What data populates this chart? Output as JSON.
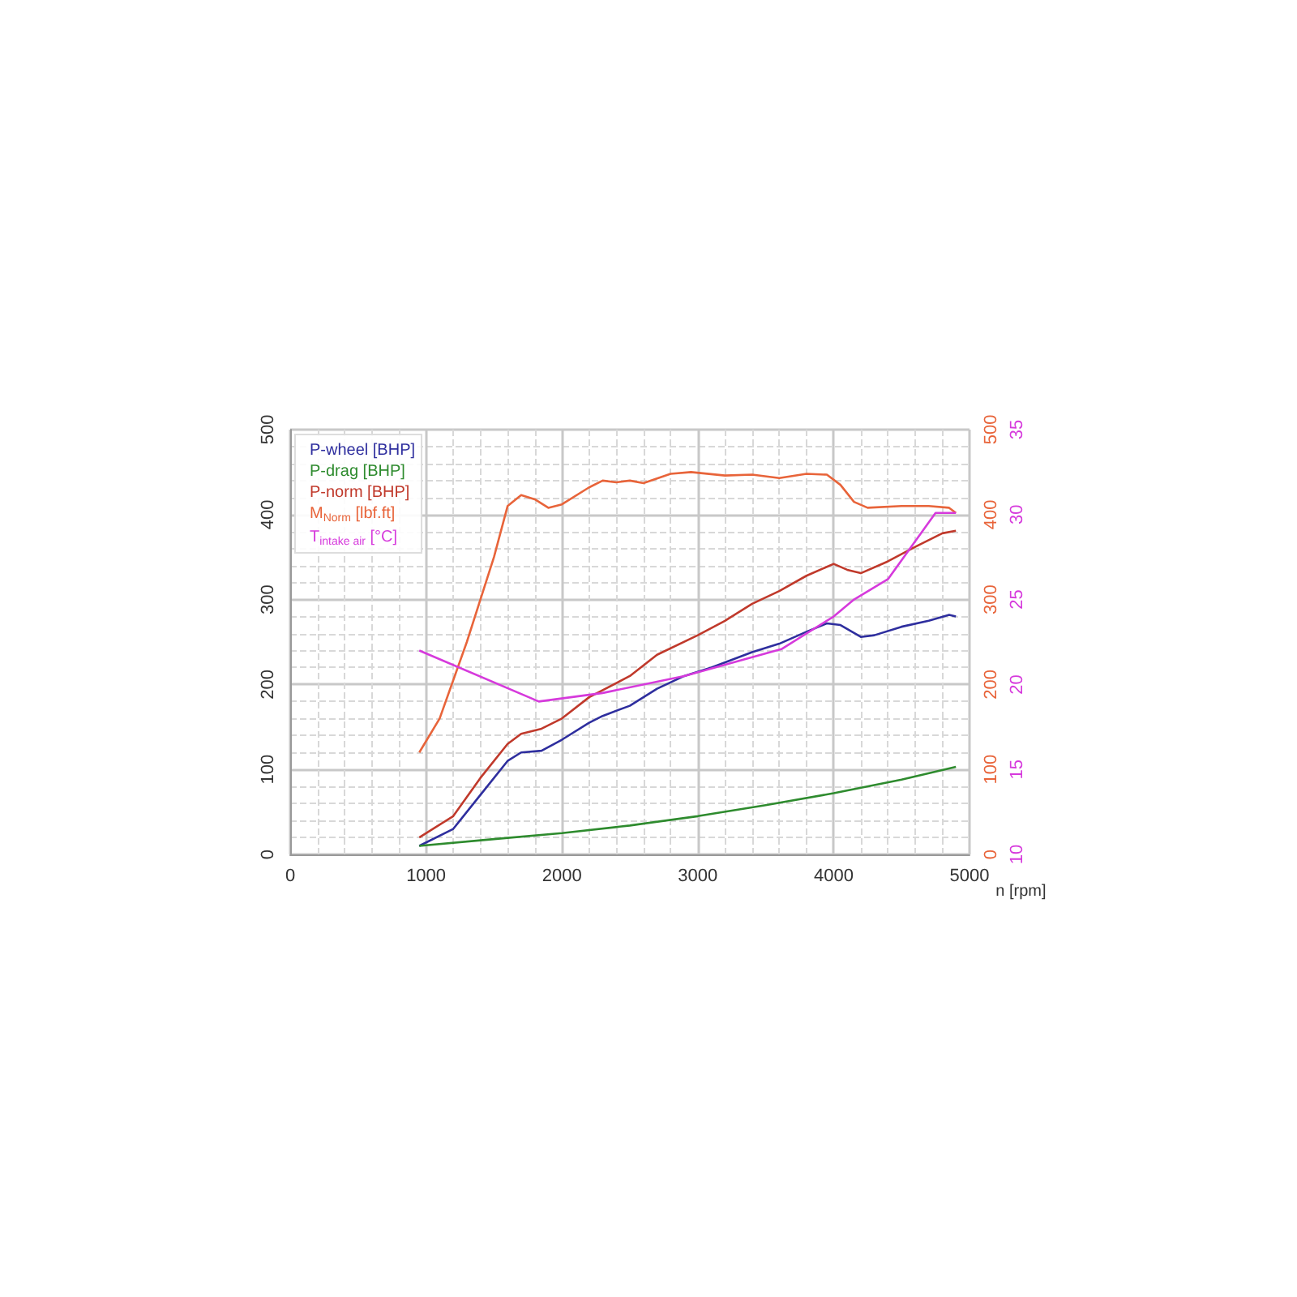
{
  "chart_data": {
    "type": "line",
    "xlabel": "n [rpm]",
    "xlim": [
      0,
      5000
    ],
    "xticks": [
      0,
      1000,
      2000,
      3000,
      4000,
      5000
    ],
    "ylim": [
      0,
      500
    ],
    "yticks": [
      0,
      100,
      200,
      300,
      400,
      500
    ],
    "y2lim": [
      0,
      500
    ],
    "y2ticks": [
      0,
      100,
      200,
      300,
      400,
      500
    ],
    "y3lim": [
      10,
      35
    ],
    "y3ticks": [
      10,
      15,
      20,
      25,
      30,
      35
    ],
    "grid": true,
    "legend": "top left",
    "marker": "none",
    "line_style": "solid",
    "series": [
      {
        "name": "P-wheel [BHP]",
        "color": "#2e2e9e",
        "x": [
          950,
          1200,
          1400,
          1600,
          1700,
          1850,
          2000,
          2200,
          2300,
          2500,
          2700,
          2900,
          3100,
          3400,
          3600,
          3800,
          3950,
          4050,
          4200,
          4300,
          4500,
          4700,
          4850,
          4900
        ],
        "values": [
          10,
          30,
          70,
          110,
          120,
          122,
          135,
          155,
          163,
          175,
          195,
          210,
          220,
          238,
          248,
          262,
          272,
          270,
          256,
          258,
          268,
          275,
          282,
          280
        ]
      },
      {
        "name": "P-drag [BHP]",
        "color": "#2e8b2e",
        "x": [
          950,
          1500,
          2000,
          2500,
          3000,
          3500,
          4000,
          4500,
          4900
        ],
        "values": [
          10,
          18,
          25,
          34,
          45,
          58,
          72,
          88,
          103
        ]
      },
      {
        "name": "P-norm [BHP]",
        "color": "#c0392b",
        "x": [
          950,
          1200,
          1400,
          1600,
          1700,
          1850,
          2000,
          2200,
          2500,
          2700,
          3000,
          3200,
          3400,
          3600,
          3800,
          4000,
          4100,
          4200,
          4400,
          4600,
          4800,
          4900
        ],
        "values": [
          20,
          45,
          90,
          130,
          142,
          148,
          160,
          185,
          210,
          235,
          258,
          275,
          295,
          310,
          328,
          342,
          335,
          331,
          345,
          362,
          378,
          381
        ]
      },
      {
        "name": "M$_{Norm}$ [lbf.ft]",
        "color": "#e8643a",
        "axis": "y2",
        "x": [
          950,
          1100,
          1300,
          1500,
          1600,
          1700,
          1800,
          1900,
          2000,
          2200,
          2300,
          2400,
          2500,
          2600,
          2800,
          2950,
          3200,
          3400,
          3600,
          3800,
          3950,
          4050,
          4150,
          4250,
          4500,
          4700,
          4850,
          4900
        ],
        "values": [
          120,
          160,
          250,
          350,
          410,
          423,
          418,
          408,
          412,
          432,
          440,
          438,
          440,
          437,
          448,
          450,
          446,
          447,
          443,
          448,
          447,
          435,
          415,
          408,
          410,
          410,
          408,
          402
        ]
      },
      {
        "name": "T$_{intake air}$ [°C]",
        "color": "#d63adc",
        "axis": "y3",
        "x": [
          950,
          1830,
          2300,
          2900,
          3620,
          4000,
          4150,
          4400,
          4750,
          4900
        ],
        "values": [
          22,
          19,
          19.5,
          20.5,
          22.1,
          24,
          25,
          26.2,
          30.1,
          30.1
        ]
      }
    ]
  }
}
